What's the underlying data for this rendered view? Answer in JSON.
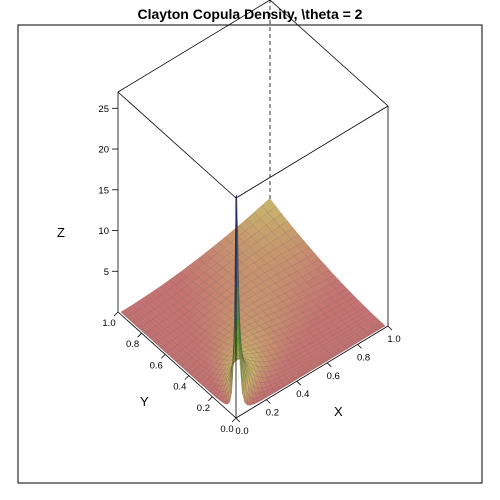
{
  "chart_data": {
    "type": "surface",
    "title": "Clayton Copula Density, \\theta = 2",
    "theta": 2,
    "xlabel": "X",
    "ylabel": "Y",
    "zlabel": "Z",
    "xlim": [
      0,
      1
    ],
    "ylim": [
      0,
      1
    ],
    "zlim": [
      0,
      27
    ],
    "x_ticks": [
      "0.0",
      "0.2",
      "0.4",
      "0.6",
      "0.8",
      "1.0"
    ],
    "y_ticks": [
      "0.0",
      "0.2",
      "0.4",
      "0.6",
      "0.8",
      "1.0"
    ],
    "z_ticks": [
      "5",
      "10",
      "15",
      "20",
      "25"
    ],
    "surface_color_low": "#c47272",
    "surface_color_mid": "#c8b26c",
    "surface_color_peak_green": "#5aa02e",
    "surface_color_peak_blue": "#3c55c8",
    "mesh_color": "#5a3c32"
  }
}
